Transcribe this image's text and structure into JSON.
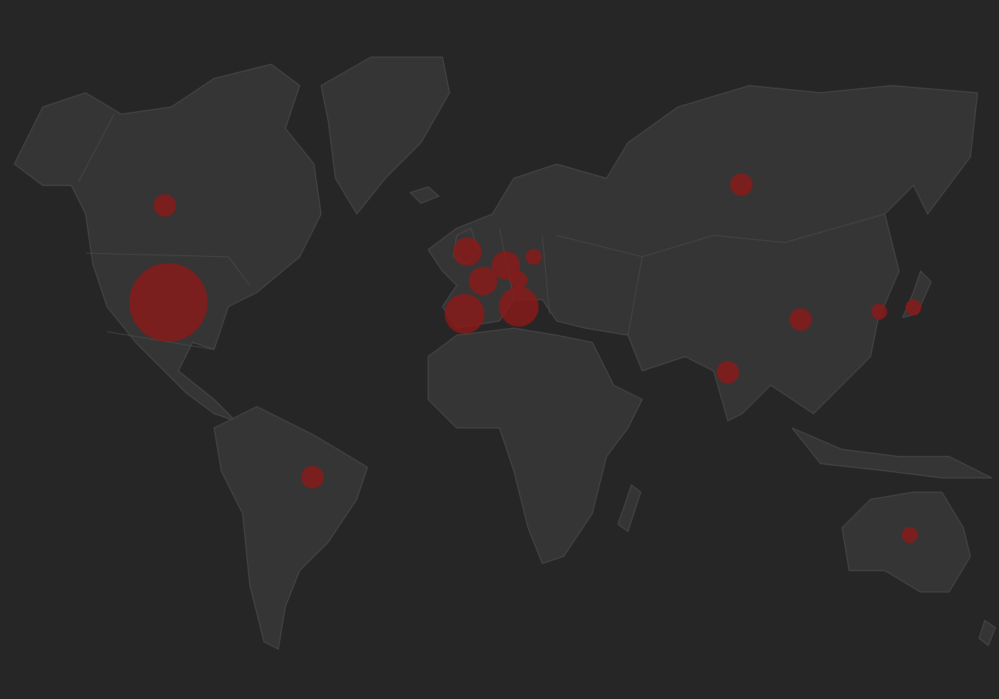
{
  "chart_data": {
    "type": "bubble",
    "color": "#8b1a1a",
    "values": [
      10,
      121,
      10,
      16,
      16,
      16,
      6,
      5,
      31,
      31,
      10,
      10,
      10,
      5,
      5,
      5
    ]
  }
}
